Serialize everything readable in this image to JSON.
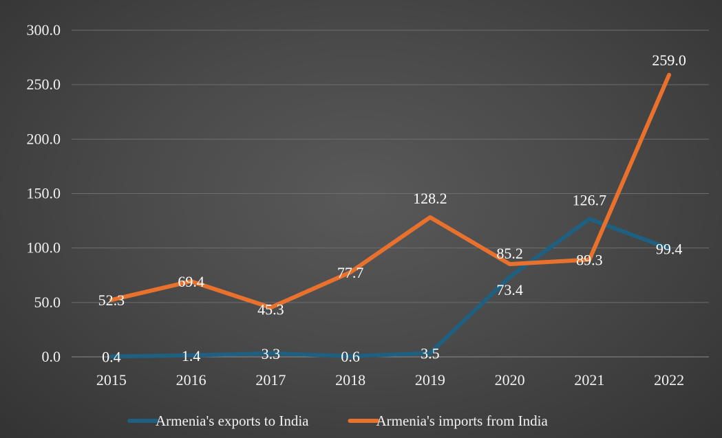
{
  "chart_data": {
    "type": "line",
    "title": "",
    "xlabel": "",
    "ylabel": "",
    "categories": [
      "2015",
      "2016",
      "2017",
      "2018",
      "2019",
      "2020",
      "2021",
      "2022"
    ],
    "ylim": [
      0,
      300
    ],
    "yticks": [
      "0.0",
      "50.0",
      "100.0",
      "150.0",
      "200.0",
      "250.0",
      "300.0"
    ],
    "grid": true,
    "legend_position": "bottom",
    "series": [
      {
        "name": "Armenia's exports to India",
        "color": "#1f5f7f",
        "values": [
          0.4,
          1.4,
          3.3,
          0.6,
          3.5,
          73.4,
          126.7,
          99.4
        ],
        "labels": [
          "0.4",
          "1.4",
          "3.3",
          "0.6",
          "3.5",
          "73.4",
          "126.7",
          "99.4"
        ]
      },
      {
        "name": "Armenia's imports from India",
        "color": "#e8712d",
        "values": [
          52.3,
          69.4,
          45.3,
          77.7,
          128.2,
          85.2,
          89.3,
          259.0
        ],
        "labels": [
          "52.3",
          "69.4",
          "45.3",
          "77.7",
          "128.2",
          "85.2",
          "89.3",
          "259.0"
        ]
      }
    ]
  }
}
